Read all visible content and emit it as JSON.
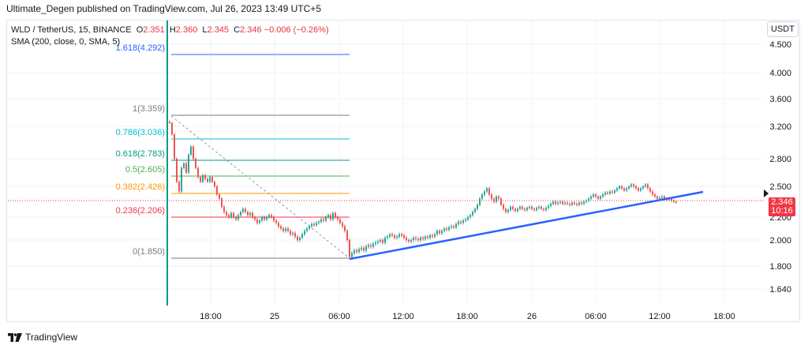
{
  "header": {
    "publisher_text": "Ultimate_Degen published on TradingView.com, Jul 26, 2023 13:49 UTC+5"
  },
  "legend": {
    "symbol": "WLD / TetherUS, 15, BINANCE",
    "open_label": "O",
    "open": "2.351",
    "high_label": "H",
    "high": "2.360",
    "low_label": "L",
    "low": "2.345",
    "close_label": "C",
    "close": "2.346",
    "change": "−0.006 (−0.26%)",
    "sma": "SMA (200, close, 0, SMA, 5)"
  },
  "currency_button": "USDT",
  "price_badge": {
    "price": "2.346",
    "countdown": "10:16"
  },
  "footer": {
    "brand": "TradingView"
  },
  "colors": {
    "up": "#26a69a",
    "down": "#ef5350",
    "trend": "#2962ff",
    "fib_1618": "#2962ff",
    "fib_1": "#787b86",
    "fib_0786": "#00bcd4",
    "fib_0618": "#089981",
    "fib_05": "#4caf50",
    "fib_0382": "#ff9800",
    "fib_0236": "#f23645",
    "fib_0": "#787b86",
    "badge": "#f23645"
  },
  "chart_data": {
    "type": "candlestick",
    "y_axis_ticks": [
      "4.500",
      "4.000",
      "3.600",
      "3.200",
      "2.800",
      "2.500",
      "2.200",
      "2.000",
      "1.800",
      "1.640"
    ],
    "x_axis_ticks": [
      "18:00",
      "25",
      "06:00",
      "12:00",
      "18:00",
      "26",
      "06:00",
      "12:00",
      "18:00"
    ],
    "fib_levels": [
      {
        "ratio": "1.618",
        "price": "4.292",
        "label": "1.618(4.292)"
      },
      {
        "ratio": "1",
        "price": "3.359",
        "label": "1(3.359)"
      },
      {
        "ratio": "0.786",
        "price": "3.036",
        "label": "0.786(3.036)"
      },
      {
        "ratio": "0.618",
        "price": "2.783",
        "label": "0.618(2.783)"
      },
      {
        "ratio": "0.5",
        "price": "2.605",
        "label": "0.5(2.605)"
      },
      {
        "ratio": "0.382",
        "price": "2.426",
        "label": "0.382(2.426)"
      },
      {
        "ratio": "0.236",
        "price": "2.206",
        "label": "0.236(2.206)"
      },
      {
        "ratio": "0",
        "price": "1.850",
        "label": "0(1.850)"
      }
    ],
    "last_price": 2.346
  }
}
